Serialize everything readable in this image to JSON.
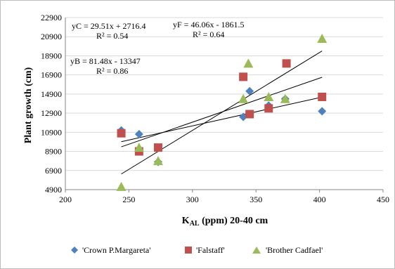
{
  "chart_data": {
    "type": "scatter",
    "xlabel_main": "K",
    "xlabel_sub": "AL",
    "xlabel_rest": " (ppm) 20-40 cm",
    "ylabel": "Plant growth (cm)",
    "xlim": [
      200,
      450
    ],
    "ylim": [
      4900,
      22900
    ],
    "xticks": [
      "200",
      "250",
      "300",
      "350",
      "400",
      "450"
    ],
    "yticks": [
      "4900",
      "6900",
      "8900",
      "10900",
      "12900",
      "14900",
      "16900",
      "18900",
      "20900",
      "22900"
    ],
    "grid": "horizontal",
    "legend_position": "bottom",
    "series": [
      {
        "name": "'Crown P.Margareta'",
        "marker": "diamond",
        "color": "#4f81bd",
        "x": [
          244,
          258,
          273,
          340,
          345,
          360,
          373,
          402
        ],
        "y": [
          11100,
          10700,
          7800,
          12500,
          15200,
          13700,
          14400,
          13100
        ],
        "trend": {
          "slope": 29.51,
          "intercept": 2716.4
        },
        "equation": "yC = 29.51x + 2716.4",
        "r2": "R² = 0.54"
      },
      {
        "name": "'Falstaff'",
        "marker": "square",
        "color": "#c0504d",
        "x": [
          244,
          258,
          273,
          340,
          345,
          360,
          374,
          402
        ],
        "y": [
          10800,
          8900,
          9300,
          16700,
          12800,
          13400,
          18100,
          14600
        ],
        "trend": {
          "slope": 46.06,
          "intercept": -1861.5
        },
        "equation": "yF = 46.06x - 1861.5",
        "r2": "R² = 0.64"
      },
      {
        "name": "'Brother Cadfael'",
        "marker": "triangle",
        "color": "#9bbb59",
        "x": [
          244,
          258,
          273,
          340,
          344,
          360,
          373,
          402
        ],
        "y": [
          5200,
          9300,
          7900,
          14400,
          18100,
          14600,
          14400,
          20700
        ],
        "trend": {
          "slope": 81.48,
          "intercept": -13347
        },
        "equation": "yB = 81.48x - 13347",
        "r2": "R² = 0.86"
      }
    ]
  }
}
